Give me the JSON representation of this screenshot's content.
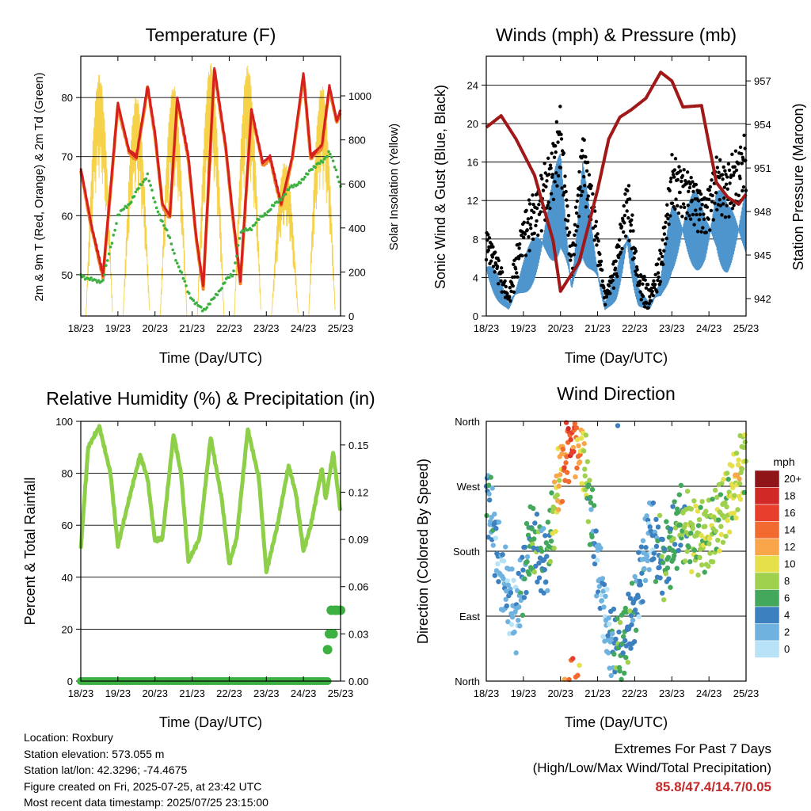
{
  "x_ticks": [
    "18/23",
    "19/23",
    "20/23",
    "21/23",
    "22/23",
    "23/23",
    "24/23",
    "25/23"
  ],
  "colors": {
    "t2m": "#d62020",
    "t9m": "#f08a2a",
    "td": "#3cb040",
    "solar": "#f5d24a",
    "wind": "#4d95cc",
    "gust": "#000000",
    "pressure": "#a01818",
    "rh": "#8ecf4a",
    "precip": "#3cb040"
  },
  "chart_data": [
    {
      "id": "temperature",
      "type": "line",
      "title": "Temperature (F)",
      "xlabel": "Time (Day/UTC)",
      "ylabel": "2m & 9m T (Red, Orange) & 2m Td (Green)",
      "ylabel_right": "Solar Insolation (Yellow)",
      "ylim": [
        43,
        87
      ],
      "ylim_right": [
        0,
        1180
      ],
      "yticks": [
        50,
        60,
        70,
        80
      ],
      "yticks_right": [
        0,
        200,
        400,
        600,
        800,
        1000
      ],
      "x": [
        0,
        0.3,
        0.6,
        1.0,
        1.3,
        1.5,
        1.8,
        2.0,
        2.2,
        2.4,
        2.6,
        2.9,
        3.1,
        3.3,
        3.6,
        3.9,
        4.1,
        4.3,
        4.6,
        4.9,
        5.1,
        5.4,
        5.7,
        6.0,
        6.2,
        6.5,
        6.7,
        6.9,
        7.0
      ],
      "series": [
        {
          "name": "2m T",
          "values": [
            68,
            58,
            50,
            79,
            71,
            70,
            82,
            74,
            62,
            60,
            80,
            70,
            57,
            48,
            85,
            72,
            60,
            49,
            78,
            69,
            70,
            62,
            70,
            84,
            70,
            72,
            82,
            76,
            78
          ]
        },
        {
          "name": "2m Td",
          "values": [
            50,
            49,
            49,
            60,
            62,
            64,
            67,
            62,
            59,
            56,
            52,
            47,
            45,
            44,
            46,
            49,
            50,
            57,
            58,
            60,
            61,
            63,
            65,
            66,
            68,
            69,
            71,
            67,
            65
          ]
        }
      ],
      "solar_days": [
        0.5,
        1.5,
        2.5,
        3.5,
        4.5,
        5.5,
        6.5
      ],
      "solar_peaks": [
        1100,
        1000,
        1050,
        1150,
        1140,
        700,
        1050
      ]
    },
    {
      "id": "winds",
      "type": "scatter",
      "title": "Winds (mph) & Pressure (mb)",
      "xlabel": "Time (Day/UTC)",
      "ylabel": "Sonic Wind & Gust (Blue, Black)",
      "ylabel_right": "Station Pressure (Maroon)",
      "ylim": [
        0,
        27
      ],
      "ylim_right": [
        940.8,
        958.7
      ],
      "yticks": [
        0,
        4,
        8,
        12,
        16,
        20,
        24
      ],
      "yticks_right": [
        942,
        945,
        948,
        951,
        954,
        957
      ],
      "wind_x": [
        0,
        0.3,
        0.6,
        1.0,
        1.3,
        1.7,
        2.0,
        2.3,
        2.6,
        2.9,
        3.2,
        3.5,
        3.8,
        4.1,
        4.4,
        4.7,
        5.0,
        5.3,
        5.6,
        5.9,
        6.2,
        6.5,
        6.8,
        7.0
      ],
      "wind": [
        5,
        3,
        1,
        4,
        6,
        9,
        12,
        3,
        11,
        6,
        1,
        3,
        8,
        2,
        1,
        3,
        8,
        9,
        9,
        8,
        10,
        8,
        9,
        10
      ],
      "gust": [
        9,
        6,
        2,
        10,
        12,
        16,
        21,
        6,
        19,
        12,
        2,
        6,
        14,
        4,
        2,
        6,
        16,
        15,
        14,
        12,
        16,
        15,
        17,
        18
      ],
      "pressure_x": [
        0,
        0.4,
        0.8,
        1.3,
        1.8,
        2.0,
        2.5,
        3.0,
        3.3,
        3.6,
        3.9,
        4.3,
        4.7,
        5.0,
        5.3,
        5.8,
        6.2,
        6.5,
        6.8,
        7.0
      ],
      "pressure": [
        953.8,
        954.6,
        953.0,
        950.5,
        946.0,
        942.5,
        944.5,
        949.5,
        953.0,
        954.5,
        955.0,
        955.8,
        957.6,
        957.0,
        955.2,
        955.3,
        950.0,
        949.0,
        948.5,
        949.2
      ]
    },
    {
      "id": "humidity",
      "type": "line",
      "title": "Relative Humidity (%) & Precipitation (in)",
      "xlabel": "Time (Day/UTC)",
      "ylabel": "Percent & Total Rainfall",
      "ylim": [
        0,
        100
      ],
      "ylim_right": [
        0,
        0.165
      ],
      "yticks": [
        0,
        20,
        40,
        60,
        80,
        100
      ],
      "yticks_right": [
        "0.00",
        "0.03",
        "0.06",
        "0.09",
        "0.12",
        "0.15"
      ],
      "x": [
        0,
        0.2,
        0.5,
        0.8,
        1.0,
        1.3,
        1.6,
        1.8,
        2.0,
        2.2,
        2.5,
        2.7,
        2.9,
        3.2,
        3.5,
        3.8,
        4.0,
        4.2,
        4.5,
        4.8,
        5.0,
        5.3,
        5.6,
        5.8,
        6.0,
        6.2,
        6.5,
        6.6,
        6.8,
        7.0
      ],
      "series": [
        {
          "name": "RH",
          "values": [
            51,
            90,
            98,
            80,
            52,
            70,
            87,
            78,
            54,
            55,
            95,
            80,
            46,
            55,
            94,
            70,
            45,
            55,
            97,
            78,
            42,
            60,
            83,
            72,
            50,
            60,
            82,
            70,
            88,
            65
          ]
        }
      ],
      "precip_x": [
        6.65,
        6.7,
        6.75,
        6.8,
        6.85,
        6.9,
        7.0
      ],
      "precip": [
        0.02,
        0.03,
        0.045,
        0.03,
        0.045,
        0.045,
        0.045
      ]
    },
    {
      "id": "direction",
      "type": "scatter",
      "title": "Wind Direction",
      "xlabel": "Time (Day/UTC)",
      "ylabel": "Direction (Colored By Speed)",
      "ylim": [
        0,
        360
      ],
      "ytick_labels": [
        "North",
        "East",
        "South",
        "West",
        "North"
      ],
      "legend_title": "mph",
      "legend_labels": [
        "20+",
        "18",
        "16",
        "14",
        "12",
        "10",
        "8",
        "6",
        "4",
        "2",
        "0"
      ],
      "legend_colors": [
        "#8f1518",
        "#d12a26",
        "#e83f2c",
        "#f26a2f",
        "#f9a64a",
        "#e6e04b",
        "#9fd04e",
        "#43a85c",
        "#3c80c0",
        "#6fb2e0",
        "#b8e2f6"
      ],
      "x": [
        0,
        0.4,
        0.8,
        1.2,
        1.6,
        2.0,
        2.3,
        2.6,
        3.0,
        3.3,
        3.6,
        4.0,
        4.4,
        4.8,
        5.2,
        5.6,
        6.0,
        6.4,
        6.8,
        7.0
      ],
      "dir": [
        270,
        150,
        90,
        200,
        160,
        290,
        345,
        320,
        160,
        60,
        40,
        100,
        210,
        160,
        220,
        200,
        200,
        240,
        280,
        320
      ],
      "speed": [
        4,
        2,
        2,
        6,
        4,
        12,
        16,
        10,
        2,
        2,
        6,
        4,
        2,
        6,
        6,
        8,
        8,
        8,
        10,
        8
      ]
    }
  ],
  "info": {
    "location": "Location: Roxbury",
    "elevation": "Station elevation: 573.055 m",
    "latlon": "Station lat/lon: 42.3296; -74.4675",
    "created": "Figure created on Fri, 2025-07-25, at 23:42 UTC",
    "recent": "Most recent data timestamp: 2025/07/25 23:15:00"
  },
  "extremes": {
    "title": "Extremes For Past 7 Days",
    "subtitle": "(High/Low/Max Wind/Total Precipitation)",
    "values": "85.8/47.4/14.7/0.05"
  }
}
